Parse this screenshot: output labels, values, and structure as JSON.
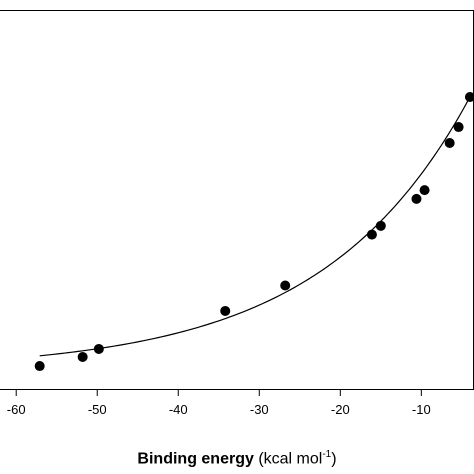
{
  "chart_data": {
    "type": "scatter",
    "xlabel_main": "Binding energy",
    "xlabel_unit_prefix": "(kcal mol",
    "xlabel_unit_sup": "-1",
    "xlabel_unit_suffix": ")",
    "xlim": [
      -62,
      -3.5
    ],
    "ylim": [
      0,
      1
    ],
    "xticks": [
      -60,
      -50,
      -40,
      -30,
      -20,
      -10
    ],
    "xtick_labels": [
      "-60",
      "-50",
      "-40",
      "-30",
      "-20",
      "-10"
    ],
    "grid": false,
    "points": [
      {
        "x": -57.1,
        "y": 0.063
      },
      {
        "x": -51.8,
        "y": 0.087
      },
      {
        "x": -49.8,
        "y": 0.108
      },
      {
        "x": -34.2,
        "y": 0.208
      },
      {
        "x": -26.8,
        "y": 0.275
      },
      {
        "x": -16.1,
        "y": 0.409
      },
      {
        "x": -15.0,
        "y": 0.432
      },
      {
        "x": -10.6,
        "y": 0.503
      },
      {
        "x": -9.6,
        "y": 0.526
      },
      {
        "x": -6.5,
        "y": 0.65
      },
      {
        "x": -5.4,
        "y": 0.692
      },
      {
        "x": -4.0,
        "y": 0.771
      }
    ],
    "fit_curve": {
      "type": "exponential",
      "x_range": [
        -57.1,
        -4.0
      ],
      "y_start": 0.09,
      "y_end": 0.771
    }
  }
}
